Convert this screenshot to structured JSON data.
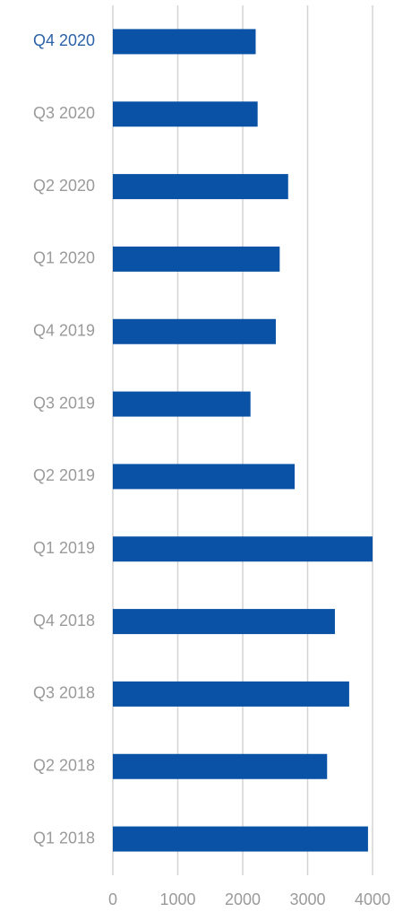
{
  "chart_data": {
    "type": "bar",
    "orientation": "horizontal",
    "categories": [
      "Q4 2020",
      "Q3 2020",
      "Q2 2020",
      "Q1 2020",
      "Q4 2019",
      "Q3 2019",
      "Q2 2019",
      "Q1 2019",
      "Q4 2018",
      "Q3 2018",
      "Q2 2018",
      "Q1 2018"
    ],
    "values": [
      2200,
      2230,
      2700,
      2570,
      2510,
      2120,
      2800,
      4000,
      3420,
      3640,
      3300,
      3930
    ],
    "color": "#0a52a5",
    "highlight_index": 0,
    "highlight_color": "#2b62a8",
    "xlim": [
      0,
      4000
    ],
    "xticks": [
      0,
      1000,
      2000,
      3000,
      4000
    ],
    "grid": true
  }
}
